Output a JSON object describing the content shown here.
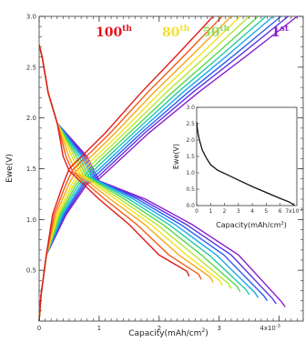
{
  "chart_data": [
    {
      "type": "line",
      "xlabel": "Capacity(mAh/cm",
      "xlabel_sup": "2",
      "xlabel_close": ")",
      "ylabel": "Ewe(V)",
      "xlim": [
        0,
        0.0044
      ],
      "ylim": [
        0,
        3.0
      ],
      "x_ticks": [
        0,
        0.001,
        0.002,
        0.003,
        0.004
      ],
      "x_tick_labels": [
        "0",
        "1",
        "2",
        "3",
        "4x10"
      ],
      "x_tick_exp": "-3",
      "y_ticks": [
        0.5,
        1.0,
        1.5,
        2.0,
        2.5,
        3.0
      ],
      "y_tick_labels": [
        "0.5",
        "1.0",
        "1.5",
        "2.0",
        "2.5",
        "3.0"
      ],
      "cycle_labels": [
        {
          "base": "100",
          "sup": "th",
          "color": "#e8121b"
        },
        {
          "base": "80",
          "sup": "th",
          "color": "#f5e12b"
        },
        {
          "base": "50",
          "sup": "th",
          "color": "#8ee05a"
        },
        {
          "base": "1",
          "sup": "st",
          "color": "#8a1fc9"
        }
      ],
      "series": [
        {
          "cycle": 100,
          "color": "#e21b1b",
          "discharge_end": 0.0025,
          "charge_end": 0.0029,
          "lowV_end": 0.44,
          "cross": 1.5,
          "mid_capacity": 0.0005
        },
        {
          "cycle": 90,
          "color": "#f45a14",
          "discharge_end": 0.0027,
          "charge_end": 0.00305,
          "lowV_end": 0.41,
          "cross": 1.49,
          "mid_capacity": 0.00056
        },
        {
          "cycle": 80,
          "color": "#f7a81a",
          "discharge_end": 0.0029,
          "charge_end": 0.0032,
          "lowV_end": 0.38,
          "cross": 1.48,
          "mid_capacity": 0.00062
        },
        {
          "cycle": 70,
          "color": "#f2e21e",
          "discharge_end": 0.00305,
          "charge_end": 0.00335,
          "lowV_end": 0.35,
          "cross": 1.47,
          "mid_capacity": 0.00068
        },
        {
          "cycle": 60,
          "color": "#b7e634",
          "discharge_end": 0.0032,
          "charge_end": 0.0035,
          "lowV_end": 0.32,
          "cross": 1.46,
          "mid_capacity": 0.00073
        },
        {
          "cycle": 50,
          "color": "#52d94a",
          "discharge_end": 0.00335,
          "charge_end": 0.00365,
          "lowV_end": 0.29,
          "cross": 1.45,
          "mid_capacity": 0.00078
        },
        {
          "cycle": 40,
          "color": "#20c9a8",
          "discharge_end": 0.0035,
          "charge_end": 0.00378,
          "lowV_end": 0.26,
          "cross": 1.44,
          "mid_capacity": 0.00083
        },
        {
          "cycle": 30,
          "color": "#1aa6f0",
          "discharge_end": 0.00365,
          "charge_end": 0.0039,
          "lowV_end": 0.23,
          "cross": 1.43,
          "mid_capacity": 0.00088
        },
        {
          "cycle": 20,
          "color": "#2f5ff0",
          "discharge_end": 0.0038,
          "charge_end": 0.00403,
          "lowV_end": 0.2,
          "cross": 1.42,
          "mid_capacity": 0.00092
        },
        {
          "cycle": 10,
          "color": "#5a33e6",
          "discharge_end": 0.00395,
          "charge_end": 0.00415,
          "lowV_end": 0.17,
          "cross": 1.41,
          "mid_capacity": 0.00096
        },
        {
          "cycle": 1,
          "color": "#8a1fc9",
          "discharge_end": 0.0041,
          "charge_end": 0.0043,
          "lowV_end": 0.14,
          "cross": 1.4,
          "mid_capacity": 0.001
        }
      ]
    },
    {
      "type": "line",
      "inset": true,
      "xlabel": "Capacity(mAh/cm",
      "xlabel_sup": "2",
      "xlabel_close": ")",
      "ylabel": "Ewe(V)",
      "xlim": [
        0,
        0.0072
      ],
      "ylim": [
        0,
        3.0
      ],
      "x_tick_labels": [
        "0",
        "1",
        "2",
        "3",
        "4",
        "5",
        "6",
        "7x10"
      ],
      "x_tick_exp": "-3",
      "y_tick_labels": [
        "0.0",
        "0.5",
        "1.0",
        "1.5",
        "2.0",
        "2.5",
        "3.0"
      ],
      "series": [
        {
          "color": "#111111",
          "x": [
            0,
            5e-05,
            0.0001,
            0.0002,
            0.0004,
            0.0007,
            0.001,
            0.0015,
            0.002,
            0.003,
            0.004,
            0.005,
            0.006,
            0.0066,
            0.0069,
            0.007
          ],
          "y": [
            2.55,
            2.35,
            2.2,
            2.0,
            1.7,
            1.45,
            1.25,
            1.08,
            0.98,
            0.78,
            0.58,
            0.4,
            0.22,
            0.12,
            0.05,
            0.0
          ]
        }
      ]
    }
  ]
}
